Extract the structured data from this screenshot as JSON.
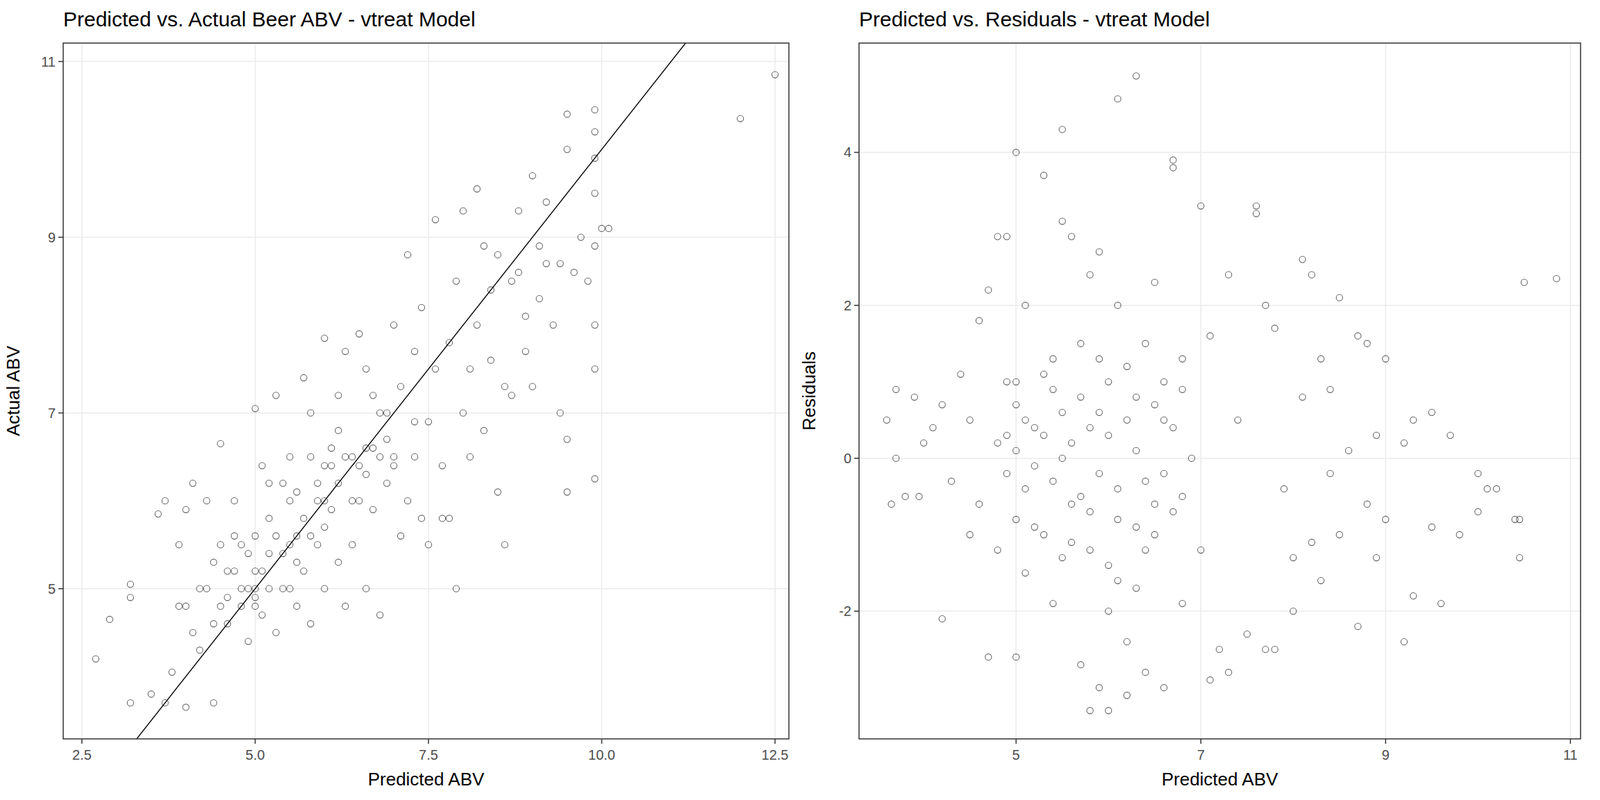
{
  "chart_data": [
    {
      "type": "scatter",
      "title": "Predicted vs. Actual Beer ABV - vtreat Model",
      "x_label": "Predicted ABV",
      "y_label": "Actual ABV",
      "xlim": [
        2.23,
        12.7
      ],
      "ylim": [
        3.29,
        11.21
      ],
      "xticks": [
        2.5,
        {
          "value": 5,
          "label": "5.0"
        },
        7.5,
        {
          "value": 10,
          "label": "10.0"
        },
        12.5
      ],
      "yticks": [
        5,
        7,
        9,
        11
      ],
      "grid": true,
      "marker": "open-circle",
      "color": "#000000",
      "reference_line": {
        "slope": 1,
        "intercept": 0
      },
      "x": [
        2.7,
        2.9,
        3.2,
        3.2,
        3.2,
        3.5,
        3.6,
        3.7,
        3.7,
        3.8,
        3.9,
        4.0,
        4.0,
        4.1,
        4.1,
        4.2,
        4.3,
        4.3,
        4.4,
        4.4,
        4.5,
        4.5,
        4.6,
        4.6,
        4.7,
        4.7,
        4.8,
        4.8,
        4.9,
        4.9,
        5.0,
        5.0,
        5.0,
        5.0,
        5.1,
        5.1,
        5.2,
        5.2,
        5.3,
        5.3,
        5.4,
        5.4,
        5.5,
        5.5,
        5.6,
        5.6,
        5.7,
        5.7,
        5.8,
        5.8,
        5.9,
        5.9,
        6.0,
        6.0,
        6.1,
        6.1,
        6.2,
        6.2,
        6.3,
        6.3,
        6.4,
        6.4,
        6.5,
        6.5,
        6.6,
        6.6,
        6.7,
        6.7,
        6.8,
        6.8,
        6.9,
        6.9,
        7.0,
        7.0,
        7.1,
        7.1,
        7.2,
        7.2,
        7.3,
        7.3,
        7.4,
        7.4,
        7.5,
        7.5,
        7.6,
        7.6,
        7.7,
        7.7,
        7.8,
        7.8,
        7.9,
        7.9,
        8.0,
        8.0,
        8.1,
        8.1,
        8.2,
        8.2,
        8.3,
        8.3,
        8.4,
        8.4,
        8.5,
        8.5,
        8.6,
        8.6,
        8.7,
        8.7,
        8.8,
        8.8,
        8.9,
        8.9,
        9.0,
        9.0,
        9.1,
        9.1,
        9.2,
        9.2,
        9.3,
        9.4,
        9.4,
        9.5,
        9.5,
        9.5,
        9.5,
        9.6,
        9.7,
        9.8,
        9.9,
        9.9,
        9.9,
        9.9,
        9.9,
        9.9,
        9.9,
        9.9,
        10.0,
        10.1,
        12.0,
        12.5,
        4.5,
        4.6,
        4.8,
        4.9,
        5.0,
        5.0,
        5.1,
        5.2,
        5.3,
        5.4,
        5.5,
        5.6,
        5.7,
        5.8,
        5.9,
        6.0,
        6.0,
        6.1,
        6.2,
        6.3,
        6.4,
        6.5,
        6.6,
        6.7,
        6.8,
        6.9,
        7.0,
        5.5,
        5.2,
        4.7,
        4.4,
        4.2,
        4.0,
        3.9,
        5.8,
        6.2,
        6.6,
        7.3,
        6.0,
        5.6
      ],
      "values": [
        4.2,
        4.65,
        3.7,
        4.9,
        5.05,
        3.8,
        5.85,
        3.7,
        6.0,
        4.05,
        4.8,
        3.65,
        5.9,
        4.5,
        6.2,
        4.3,
        5.0,
        6.0,
        3.7,
        4.6,
        5.5,
        6.65,
        4.9,
        4.6,
        5.2,
        6.0,
        4.8,
        5.5,
        5.0,
        4.4,
        5.2,
        7.05,
        4.9,
        5.6,
        6.4,
        4.7,
        5.0,
        5.8,
        7.2,
        4.5,
        5.4,
        6.2,
        5.0,
        6.0,
        4.8,
        5.6,
        7.4,
        5.2,
        6.5,
        4.6,
        5.5,
        6.2,
        5.0,
        7.85,
        5.9,
        6.4,
        5.3,
        6.8,
        7.7,
        4.8,
        6.5,
        5.5,
        7.9,
        6.0,
        5.0,
        6.6,
        7.2,
        5.9,
        6.5,
        4.7,
        7.0,
        6.2,
        8.0,
        6.5,
        5.6,
        7.3,
        8.8,
        6.0,
        6.5,
        7.7,
        5.8,
        8.2,
        6.9,
        5.5,
        7.5,
        9.2,
        6.4,
        5.8,
        7.8,
        5.8,
        5.0,
        8.5,
        7.0,
        9.3,
        7.5,
        6.5,
        8.0,
        9.55,
        8.9,
        6.8,
        7.6,
        8.4,
        8.8,
        6.1,
        5.5,
        7.3,
        8.5,
        7.2,
        9.3,
        8.6,
        8.1,
        7.7,
        9.7,
        7.3,
        8.9,
        8.3,
        9.4,
        8.7,
        8.0,
        7.0,
        8.7,
        10.4,
        6.1,
        6.7,
        10.0,
        8.6,
        9.0,
        8.5,
        10.45,
        10.2,
        9.5,
        8.9,
        8.0,
        7.5,
        6.25,
        9.9,
        9.1,
        9.1,
        10.35,
        10.85,
        4.8,
        5.2,
        5.0,
        5.4,
        5.0,
        4.8,
        5.2,
        5.4,
        5.6,
        5.0,
        5.5,
        5.3,
        5.8,
        5.6,
        6.0,
        6.4,
        5.7,
        6.6,
        6.2,
        6.5,
        6.0,
        6.4,
        6.3,
        6.6,
        7.0,
        6.7,
        6.4,
        6.5,
        6.2,
        5.6,
        5.3,
        5.0,
        4.8,
        5.5,
        7.0,
        7.2,
        7.5,
        6.9,
        6.0,
        6.1
      ]
    },
    {
      "type": "scatter",
      "title": "Predicted vs. Residuals - vtreat Model",
      "x_label": "Predicted ABV",
      "y_label": "Residuals",
      "xlim": [
        3.3,
        11.11
      ],
      "ylim": [
        -3.67,
        5.43
      ],
      "xticks": [
        5,
        7,
        9,
        11
      ],
      "yticks": [
        -2,
        0,
        2,
        4
      ],
      "grid": true,
      "marker": "open-circle",
      "color": "#000000",
      "x": [
        3.6,
        3.65,
        3.7,
        3.7,
        3.8,
        3.9,
        3.95,
        4.0,
        4.1,
        4.2,
        4.2,
        4.3,
        4.4,
        4.5,
        4.5,
        4.6,
        4.6,
        4.7,
        4.7,
        4.8,
        4.8,
        4.9,
        4.9,
        5.0,
        5.0,
        5.0,
        5.0,
        5.1,
        5.1,
        5.2,
        5.3,
        5.3,
        5.4,
        5.4,
        5.5,
        5.5,
        5.5,
        5.6,
        5.6,
        5.7,
        5.7,
        5.8,
        5.8,
        5.8,
        5.9,
        5.9,
        5.9,
        6.0,
        6.0,
        6.0,
        6.1,
        6.1,
        6.1,
        6.2,
        6.2,
        6.3,
        6.3,
        6.3,
        6.4,
        6.4,
        6.5,
        6.5,
        6.6,
        6.6,
        6.7,
        6.7,
        6.7,
        6.8,
        6.8,
        6.9,
        7.0,
        7.0,
        7.1,
        7.1,
        7.2,
        7.3,
        7.3,
        7.4,
        7.5,
        7.6,
        7.6,
        7.7,
        7.7,
        7.8,
        7.8,
        7.9,
        8.0,
        8.0,
        8.1,
        8.1,
        8.2,
        8.2,
        8.3,
        8.3,
        8.4,
        8.4,
        8.5,
        8.5,
        8.6,
        8.7,
        8.7,
        8.8,
        8.8,
        8.9,
        8.9,
        9.0,
        9.0,
        9.2,
        9.2,
        9.3,
        9.3,
        9.5,
        9.5,
        9.6,
        9.7,
        9.8,
        10.0,
        10.0,
        10.1,
        10.2,
        10.4,
        10.45,
        10.45,
        10.5,
        10.85,
        4.8,
        4.9,
        5.0,
        5.1,
        5.2,
        5.3,
        5.4,
        5.5,
        5.6,
        5.7,
        5.8,
        5.9,
        6.0,
        6.1,
        6.2,
        6.3,
        6.4,
        6.5,
        6.6,
        6.7,
        6.8,
        5.0,
        5.2,
        5.4,
        5.6,
        5.8,
        6.0,
        6.2,
        6.4,
        6.6,
        6.8,
        5.3,
        5.5,
        5.7,
        5.9,
        6.1,
        6.3,
        6.5,
        4.9,
        5.1
      ],
      "values": [
        0.5,
        -0.6,
        0.0,
        0.9,
        -0.5,
        0.8,
        -0.5,
        0.2,
        0.4,
        -2.1,
        0.7,
        -0.3,
        1.1,
        -1.0,
        0.5,
        1.8,
        -0.6,
        -2.6,
        2.2,
        2.9,
        -1.2,
        2.9,
        0.3,
        4.0,
        -0.8,
        -2.6,
        1.0,
        2.0,
        -1.5,
        0.4,
        3.7,
        -1.0,
        1.3,
        -1.9,
        3.1,
        4.3,
        0.0,
        2.9,
        -0.6,
        -2.7,
        1.5,
        2.4,
        -3.3,
        -1.2,
        2.7,
        -3.0,
        0.6,
        -2.0,
        1.0,
        -3.3,
        4.7,
        2.0,
        -0.4,
        -2.4,
        -3.1,
        5.0,
        0.8,
        -1.7,
        -2.8,
        1.5,
        2.3,
        -1.0,
        -3.0,
        0.5,
        3.9,
        3.8,
        -0.7,
        -1.9,
        1.3,
        0.0,
        3.3,
        -1.2,
        -2.9,
        1.6,
        -2.5,
        2.4,
        -2.8,
        0.5,
        -2.3,
        3.3,
        3.2,
        -2.5,
        2.0,
        -2.5,
        1.7,
        -0.4,
        -2.0,
        -1.3,
        2.6,
        0.8,
        2.4,
        -1.1,
        1.3,
        -1.6,
        0.9,
        -0.2,
        2.1,
        -1.0,
        0.1,
        1.6,
        -2.2,
        1.5,
        -0.6,
        -1.3,
        0.3,
        1.3,
        -0.8,
        -2.4,
        0.2,
        -1.8,
        0.5,
        0.6,
        -0.9,
        -1.9,
        0.3,
        -1.0,
        -0.7,
        -0.2,
        -0.4,
        -0.4,
        -0.8,
        -0.8,
        -1.3,
        2.3,
        2.35,
        0.2,
        -0.2,
        0.1,
        -0.4,
        -0.1,
        0.3,
        -0.3,
        0.6,
        0.2,
        -0.5,
        0.4,
        -0.2,
        0.3,
        -0.8,
        0.5,
        0.1,
        -0.3,
        0.7,
        -0.2,
        0.4,
        -0.5,
        0.7,
        -0.9,
        0.9,
        -1.1,
        -0.7,
        -1.4,
        1.2,
        -1.2,
        1.0,
        0.9,
        1.1,
        -1.3,
        0.8,
        1.3,
        -1.6,
        -0.9,
        -0.6,
        1.0,
        0.5
      ]
    }
  ]
}
